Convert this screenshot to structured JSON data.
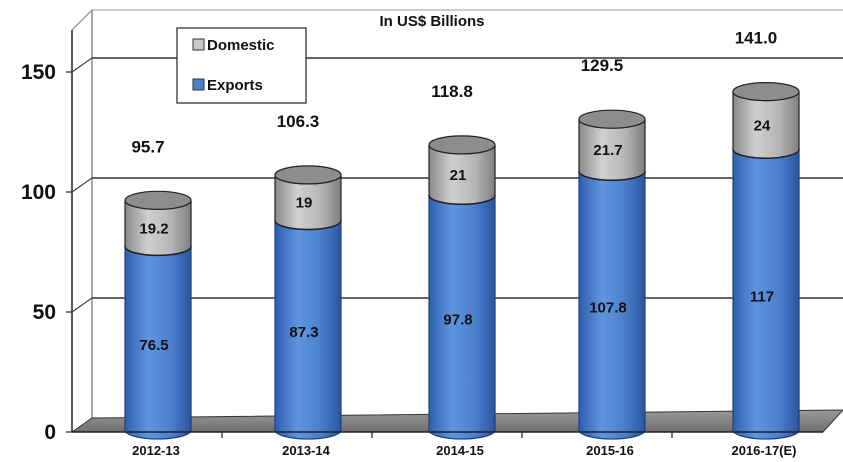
{
  "chart_data": {
    "type": "bar",
    "stacked": true,
    "subtitle": "In US$ Billions",
    "categories": [
      "2012-13",
      "2013-14",
      "2014-15",
      "2015-16",
      "2016-17(E)"
    ],
    "series": [
      {
        "name": "Exports",
        "values": [
          76.5,
          87.3,
          97.8,
          107.8,
          117
        ],
        "labels": [
          "76.5",
          "87.3",
          "97.8",
          "107.8",
          "117"
        ],
        "color": "#4a7fcc"
      },
      {
        "name": "Domestic",
        "values": [
          19.2,
          19,
          21,
          21.7,
          24
        ],
        "labels": [
          "19.2",
          "19",
          "21",
          "21.7",
          "24"
        ],
        "color": "#b0b0b0"
      }
    ],
    "totals": [
      "95.7",
      "106.3",
      "118.8",
      "129.5",
      "141.0"
    ],
    "yticks": [
      "0",
      "50",
      "100",
      "150"
    ],
    "ylim": [
      0,
      175
    ],
    "grid": true,
    "legend": {
      "position": "top-left",
      "order": [
        "Domestic",
        "Exports"
      ]
    }
  }
}
